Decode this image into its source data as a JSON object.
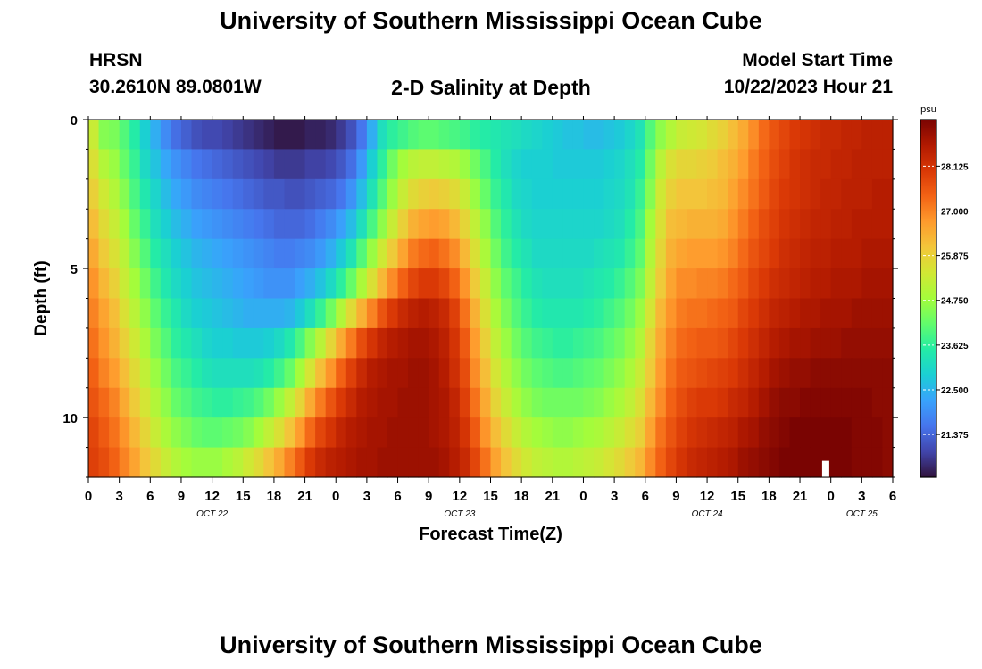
{
  "page": {
    "title": "University of Southern Mississippi Ocean Cube",
    "station": "HRSN",
    "coords": "30.2610N  89.0801W",
    "subtitle": "2-D Salinity at Depth",
    "model_label": "Model Start Time",
    "model_time": "10/22/2023 Hour 21",
    "footer_title": "University of Southern Mississippi Ocean Cube"
  },
  "chart_data": {
    "type": "heatmap",
    "title": "2-D Salinity at Depth",
    "xlabel": "Forecast Time(Z)",
    "ylabel": "Depth (ft)",
    "x_range_hours": [
      0,
      78
    ],
    "x_step_hours": 1,
    "y_range_ft": [
      0,
      12
    ],
    "y_bin_ft": 1,
    "y_ticks": [
      0,
      5,
      10
    ],
    "x_tick_labels": [
      "0",
      "3",
      "6",
      "9",
      "12",
      "15",
      "18",
      "21",
      "0",
      "3",
      "6",
      "9",
      "12",
      "15",
      "18",
      "21",
      "0",
      "3",
      "6",
      "9",
      "12",
      "15",
      "18",
      "21",
      "0",
      "3",
      "6"
    ],
    "date_labels": [
      {
        "label": "OCT 22",
        "hour": 12
      },
      {
        "label": "OCT 23",
        "hour": 36
      },
      {
        "label": "OCT 24",
        "hour": 60
      },
      {
        "label": "OCT 25",
        "hour": 75
      }
    ],
    "marker_hour": 71.5,
    "colorbar": {
      "unit": "psu",
      "min": 20.3,
      "max": 29.3,
      "ticks": [
        "28.125",
        "27.000",
        "25.875",
        "24.750",
        "23.625",
        "22.500",
        "21.375"
      ],
      "colors": [
        "#30123b",
        "#4145ab",
        "#4675ed",
        "#39a2fc",
        "#1bcfd4",
        "#24eca6",
        "#61fc6c",
        "#a4fc3b",
        "#d1e834",
        "#f3c63a",
        "#fe9b2d",
        "#f36315",
        "#d93806",
        "#b11901",
        "#7a0402"
      ]
    },
    "salinity_grid_psu": [
      [
        25.3,
        24.5,
        24.4,
        24.0,
        23.5,
        22.9,
        22.4,
        21.9,
        21.5,
        21.3,
        21.1,
        21.0,
        21.0,
        20.9,
        20.8,
        20.7,
        20.6,
        20.5,
        20.4,
        20.4,
        20.4,
        20.5,
        20.5,
        20.6,
        20.8,
        21.1,
        21.6,
        22.4,
        23.2,
        23.6,
        23.8,
        24.0,
        24.1,
        24.1,
        24.0,
        23.9,
        23.8,
        23.6,
        23.5,
        23.4,
        23.3,
        23.2,
        23.1,
        23.0,
        22.9,
        22.8,
        22.7,
        22.7,
        22.6,
        22.6,
        22.7,
        22.8,
        23.0,
        23.3,
        24.0,
        24.6,
        25.0,
        25.3,
        25.4,
        25.5,
        25.7,
        25.9,
        26.2,
        26.5,
        26.9,
        27.3,
        27.6,
        27.8,
        28.0,
        28.1,
        28.2,
        28.3,
        28.3,
        28.4,
        28.4,
        28.5,
        28.5,
        28.5
      ],
      [
        25.6,
        25.0,
        24.7,
        24.2,
        23.7,
        23.1,
        22.7,
        22.3,
        22.0,
        21.8,
        21.6,
        21.5,
        21.4,
        21.3,
        21.2,
        21.1,
        21.0,
        20.9,
        20.8,
        20.8,
        20.8,
        20.9,
        20.9,
        21.0,
        21.2,
        21.5,
        22.1,
        22.9,
        23.6,
        24.3,
        24.8,
        25.1,
        25.2,
        25.2,
        25.1,
        25.0,
        24.7,
        24.3,
        23.9,
        23.5,
        23.2,
        23.0,
        22.9,
        22.9,
        22.9,
        22.8,
        22.8,
        22.8,
        22.8,
        22.8,
        22.9,
        23.0,
        23.2,
        23.5,
        24.3,
        25.1,
        25.6,
        25.8,
        25.8,
        25.9,
        26.0,
        26.2,
        26.4,
        26.7,
        27.1,
        27.4,
        27.7,
        27.9,
        28.1,
        28.2,
        28.3,
        28.3,
        28.4,
        28.4,
        28.5,
        28.5,
        28.5,
        28.5
      ],
      [
        25.9,
        25.4,
        25.0,
        24.5,
        23.9,
        23.4,
        23.0,
        22.6,
        22.3,
        22.1,
        21.9,
        21.8,
        21.7,
        21.6,
        21.5,
        21.4,
        21.3,
        21.2,
        21.2,
        21.1,
        21.1,
        21.2,
        21.3,
        21.4,
        21.6,
        22.0,
        22.6,
        23.3,
        24.0,
        24.7,
        25.3,
        25.7,
        25.9,
        26.0,
        25.9,
        25.7,
        25.3,
        24.7,
        24.2,
        23.7,
        23.4,
        23.1,
        23.0,
        22.9,
        22.9,
        22.9,
        22.9,
        22.9,
        22.9,
        22.9,
        23.0,
        23.1,
        23.3,
        23.7,
        24.5,
        25.4,
        25.9,
        26.1,
        26.1,
        26.1,
        26.2,
        26.3,
        26.6,
        26.9,
        27.2,
        27.5,
        27.8,
        28.0,
        28.1,
        28.2,
        28.3,
        28.4,
        28.4,
        28.5,
        28.5,
        28.5,
        28.6,
        28.6
      ],
      [
        26.2,
        25.7,
        25.3,
        24.8,
        24.2,
        23.7,
        23.2,
        22.9,
        22.6,
        22.4,
        22.2,
        22.1,
        22.0,
        21.9,
        21.8,
        21.7,
        21.6,
        21.5,
        21.4,
        21.4,
        21.4,
        21.5,
        21.7,
        21.9,
        22.2,
        22.6,
        23.2,
        23.9,
        24.6,
        25.3,
        25.9,
        26.4,
        26.6,
        26.7,
        26.6,
        26.3,
        25.8,
        25.2,
        24.6,
        24.0,
        23.6,
        23.3,
        23.1,
        23.0,
        23.0,
        23.0,
        23.0,
        23.0,
        23.0,
        23.0,
        23.1,
        23.2,
        23.5,
        23.9,
        24.8,
        25.6,
        26.2,
        26.3,
        26.4,
        26.4,
        26.4,
        26.5,
        26.8,
        27.1,
        27.4,
        27.7,
        27.9,
        28.1,
        28.2,
        28.3,
        28.4,
        28.4,
        28.5,
        28.5,
        28.6,
        28.6,
        28.6,
        28.6
      ],
      [
        26.5,
        26.0,
        25.6,
        25.1,
        24.5,
        24.0,
        23.5,
        23.2,
        22.9,
        22.7,
        22.5,
        22.4,
        22.3,
        22.2,
        22.1,
        22.0,
        21.9,
        21.8,
        21.7,
        21.7,
        21.8,
        21.9,
        22.1,
        22.4,
        22.8,
        23.3,
        24.0,
        24.7,
        25.4,
        26.0,
        26.6,
        27.1,
        27.3,
        27.4,
        27.2,
        26.9,
        26.3,
        25.6,
        24.9,
        24.3,
        23.8,
        23.5,
        23.3,
        23.1,
        23.1,
        23.1,
        23.1,
        23.1,
        23.1,
        23.2,
        23.3,
        23.4,
        23.7,
        24.1,
        25.0,
        25.8,
        26.4,
        26.6,
        26.7,
        26.7,
        26.7,
        26.8,
        27.0,
        27.3,
        27.6,
        27.8,
        28.0,
        28.2,
        28.3,
        28.4,
        28.5,
        28.5,
        28.6,
        28.6,
        28.6,
        28.7,
        28.7,
        28.7
      ],
      [
        26.8,
        26.3,
        25.9,
        25.3,
        24.8,
        24.3,
        23.8,
        23.4,
        23.1,
        22.9,
        22.7,
        22.6,
        22.5,
        22.4,
        22.3,
        22.2,
        22.1,
        22.0,
        22.0,
        22.0,
        22.2,
        22.4,
        22.7,
        23.1,
        23.6,
        24.2,
        24.9,
        25.6,
        26.3,
        26.9,
        27.4,
        27.8,
        28.0,
        28.0,
        27.8,
        27.4,
        26.8,
        26.0,
        25.3,
        24.6,
        24.1,
        23.8,
        23.5,
        23.3,
        23.2,
        23.2,
        23.2,
        23.2,
        23.3,
        23.4,
        23.5,
        23.7,
        24.0,
        24.4,
        25.2,
        26.0,
        26.6,
        26.9,
        26.9,
        27.0,
        27.0,
        27.1,
        27.3,
        27.5,
        27.8,
        28.0,
        28.2,
        28.3,
        28.4,
        28.5,
        28.6,
        28.6,
        28.7,
        28.7,
        28.7,
        28.8,
        28.8,
        28.8
      ],
      [
        27.0,
        26.6,
        26.2,
        25.6,
        25.1,
        24.6,
        24.1,
        23.7,
        23.4,
        23.1,
        22.9,
        22.8,
        22.7,
        22.6,
        22.5,
        22.4,
        22.4,
        22.4,
        22.4,
        22.5,
        22.8,
        23.2,
        23.7,
        24.3,
        25.0,
        25.7,
        26.4,
        27.0,
        27.6,
        28.0,
        28.3,
        28.5,
        28.6,
        28.5,
        28.3,
        27.9,
        27.2,
        26.4,
        25.6,
        24.9,
        24.4,
        24.0,
        23.7,
        23.5,
        23.4,
        23.4,
        23.4,
        23.4,
        23.5,
        23.6,
        23.8,
        24.0,
        24.3,
        24.7,
        25.5,
        26.3,
        26.8,
        27.1,
        27.2,
        27.2,
        27.3,
        27.4,
        27.5,
        27.8,
        28.0,
        28.2,
        28.4,
        28.5,
        28.6,
        28.7,
        28.7,
        28.8,
        28.8,
        28.8,
        28.9,
        28.9,
        28.9,
        28.9
      ],
      [
        27.2,
        26.8,
        26.4,
        25.9,
        25.4,
        24.9,
        24.4,
        24.0,
        23.6,
        23.4,
        23.2,
        23.0,
        22.9,
        22.9,
        22.8,
        22.8,
        22.8,
        22.9,
        23.1,
        23.4,
        23.9,
        24.5,
        25.1,
        25.8,
        26.5,
        27.1,
        27.7,
        28.1,
        28.4,
        28.6,
        28.7,
        28.8,
        28.8,
        28.7,
        28.5,
        28.1,
        27.5,
        26.7,
        25.9,
        25.2,
        24.7,
        24.3,
        24.0,
        23.8,
        23.7,
        23.6,
        23.6,
        23.7,
        23.8,
        23.9,
        24.1,
        24.3,
        24.6,
        25.0,
        25.8,
        26.5,
        27.0,
        27.3,
        27.4,
        27.5,
        27.5,
        27.6,
        27.8,
        28.0,
        28.2,
        28.4,
        28.6,
        28.7,
        28.8,
        28.8,
        28.9,
        28.9,
        28.9,
        29.0,
        29.0,
        29.0,
        29.0,
        29.0
      ],
      [
        27.4,
        27.0,
        26.7,
        26.2,
        25.7,
        25.2,
        24.7,
        24.3,
        23.9,
        23.7,
        23.5,
        23.3,
        23.2,
        23.2,
        23.2,
        23.2,
        23.3,
        23.5,
        23.8,
        24.2,
        24.8,
        25.5,
        26.2,
        26.8,
        27.4,
        27.9,
        28.3,
        28.6,
        28.7,
        28.8,
        28.8,
        28.9,
        28.9,
        28.8,
        28.6,
        28.2,
        27.7,
        26.9,
        26.2,
        25.5,
        25.0,
        24.6,
        24.3,
        24.1,
        24.0,
        23.9,
        23.9,
        24.0,
        24.1,
        24.2,
        24.4,
        24.6,
        24.9,
        25.3,
        26.0,
        26.7,
        27.2,
        27.5,
        27.6,
        27.7,
        27.8,
        27.9,
        28.0,
        28.2,
        28.4,
        28.6,
        28.8,
        28.9,
        29.0,
        29.0,
        29.1,
        29.1,
        29.1,
        29.1,
        29.1,
        29.1,
        29.1,
        29.1
      ],
      [
        27.6,
        27.3,
        27.0,
        26.5,
        26.0,
        25.5,
        25.0,
        24.6,
        24.2,
        24.0,
        23.8,
        23.7,
        23.6,
        23.6,
        23.7,
        23.8,
        24.0,
        24.3,
        24.7,
        25.2,
        25.8,
        26.5,
        27.1,
        27.6,
        28.0,
        28.3,
        28.6,
        28.7,
        28.8,
        28.8,
        28.9,
        28.9,
        28.9,
        28.8,
        28.7,
        28.4,
        27.9,
        27.2,
        26.5,
        25.8,
        25.3,
        24.9,
        24.6,
        24.4,
        24.3,
        24.3,
        24.3,
        24.3,
        24.4,
        24.5,
        24.7,
        24.9,
        25.2,
        25.6,
        26.3,
        26.9,
        27.4,
        27.7,
        27.9,
        28.0,
        28.0,
        28.1,
        28.3,
        28.4,
        28.6,
        28.8,
        29.0,
        29.1,
        29.1,
        29.2,
        29.2,
        29.2,
        29.2,
        29.2,
        29.2,
        29.2,
        29.1,
        29.1
      ],
      [
        27.8,
        27.5,
        27.2,
        26.8,
        26.3,
        25.8,
        25.3,
        24.9,
        24.6,
        24.4,
        24.2,
        24.1,
        24.1,
        24.2,
        24.3,
        24.5,
        24.8,
        25.2,
        25.6,
        26.1,
        26.7,
        27.3,
        27.8,
        28.1,
        28.4,
        28.6,
        28.7,
        28.8,
        28.8,
        28.9,
        28.9,
        28.9,
        28.9,
        28.8,
        28.7,
        28.5,
        28.1,
        27.5,
        26.8,
        26.2,
        25.7,
        25.3,
        25.0,
        24.8,
        24.7,
        24.6,
        24.6,
        24.7,
        24.8,
        24.9,
        25.1,
        25.3,
        25.6,
        25.9,
        26.6,
        27.2,
        27.6,
        27.9,
        28.1,
        28.2,
        28.3,
        28.4,
        28.5,
        28.7,
        28.8,
        29.0,
        29.1,
        29.2,
        29.3,
        29.3,
        29.3,
        29.3,
        29.3,
        29.3,
        29.2,
        29.2,
        29.2,
        29.1
      ],
      [
        27.9,
        27.7,
        27.4,
        27.0,
        26.6,
        26.1,
        25.7,
        25.3,
        25.0,
        24.8,
        24.7,
        24.7,
        24.7,
        24.9,
        25.1,
        25.4,
        25.7,
        26.1,
        26.5,
        27.0,
        27.5,
        28.0,
        28.3,
        28.5,
        28.6,
        28.7,
        28.8,
        28.8,
        28.9,
        28.9,
        28.9,
        28.9,
        28.9,
        28.9,
        28.8,
        28.6,
        28.3,
        27.8,
        27.2,
        26.6,
        26.1,
        25.7,
        25.4,
        25.2,
        25.1,
        25.0,
        25.0,
        25.1,
        25.2,
        25.3,
        25.5,
        25.7,
        26.0,
        26.3,
        26.9,
        27.4,
        27.8,
        28.1,
        28.3,
        28.4,
        28.5,
        28.6,
        28.7,
        28.9,
        29.0,
        29.1,
        29.2,
        29.3,
        29.3,
        29.3,
        29.3,
        29.3,
        29.3,
        29.3,
        29.2,
        29.2,
        29.2,
        29.1
      ]
    ]
  }
}
